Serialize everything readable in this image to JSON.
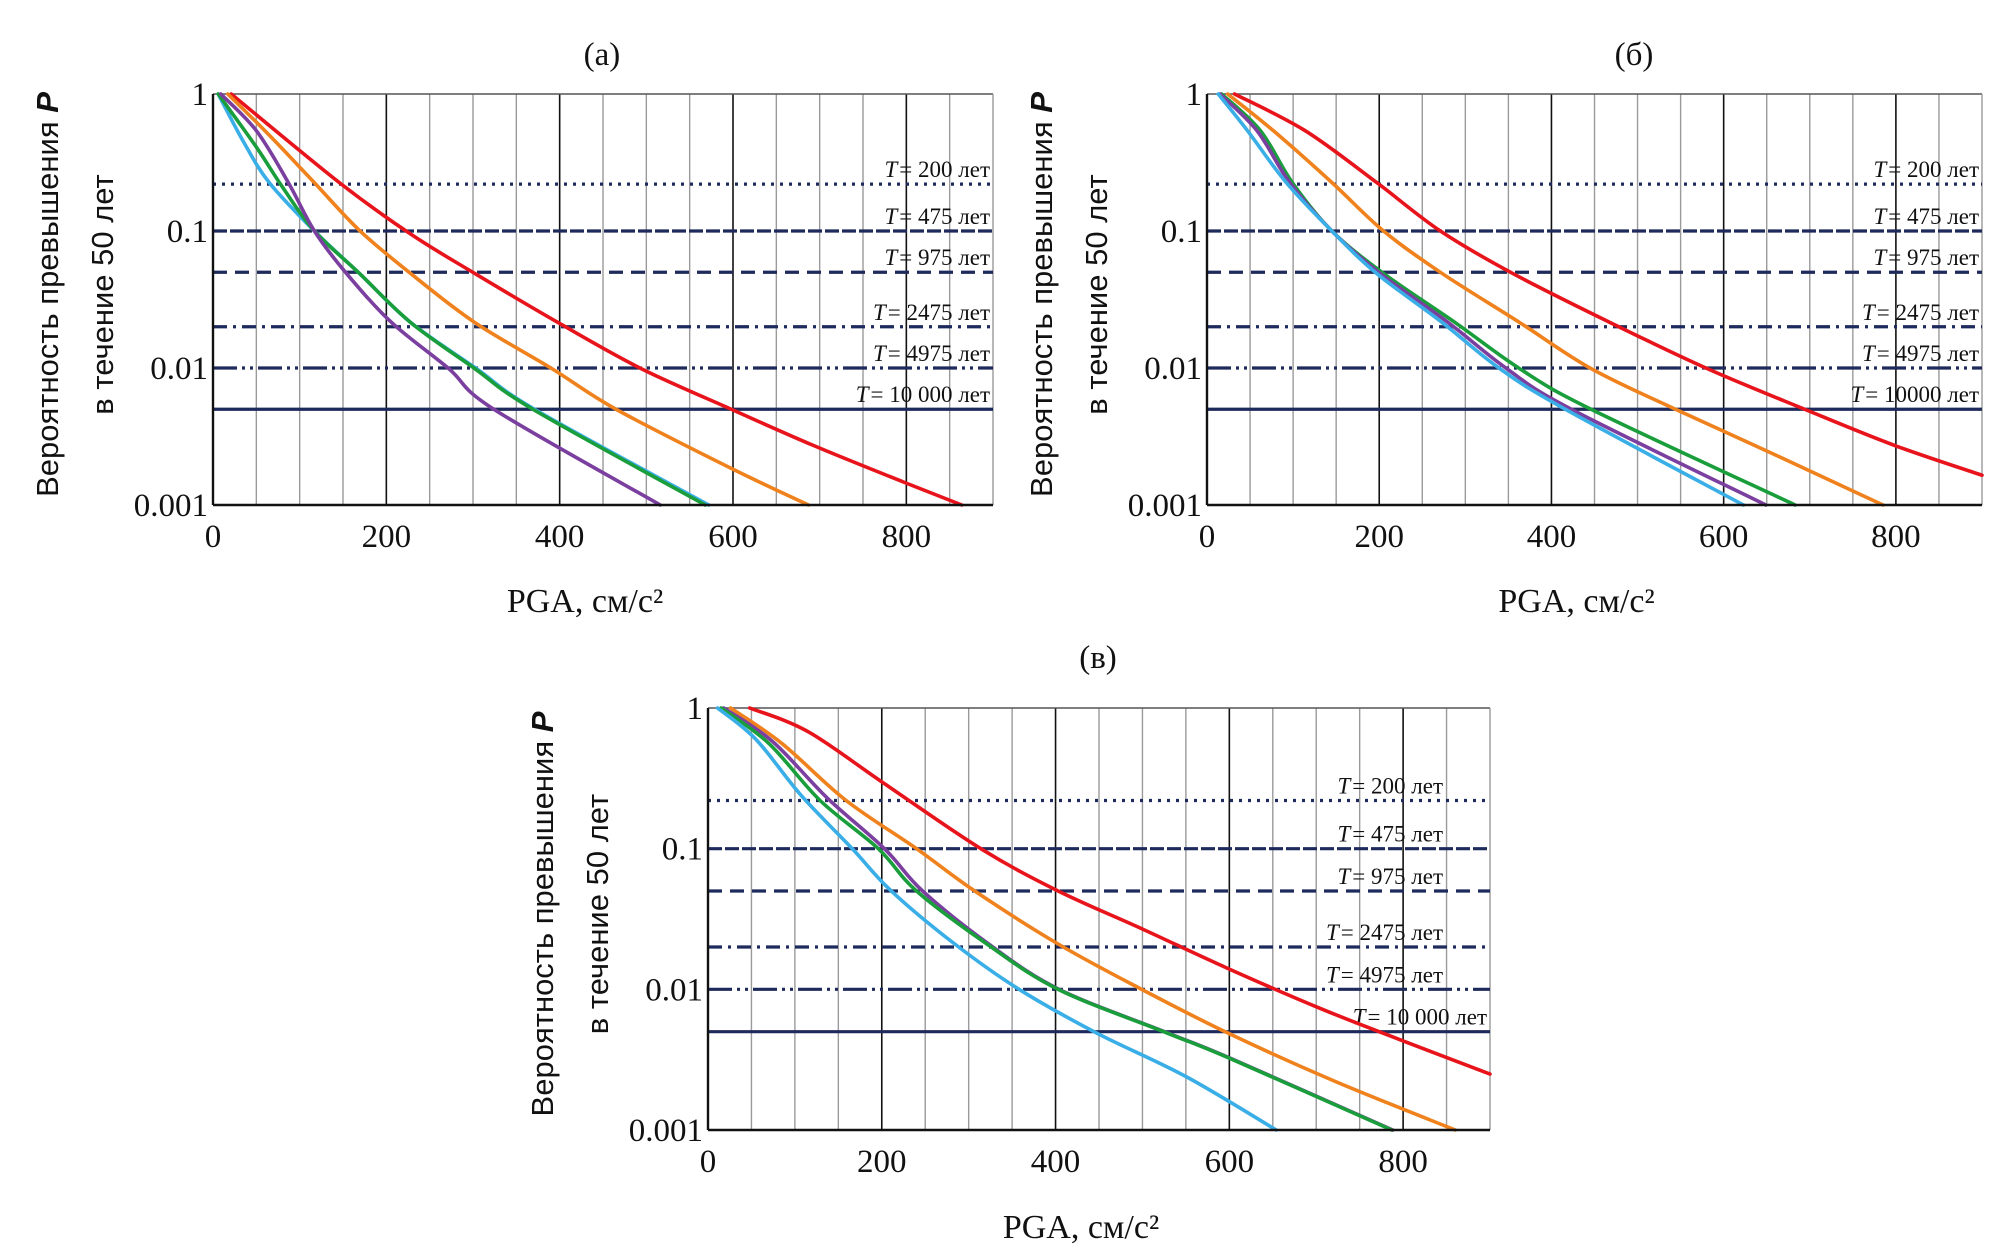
{
  "reference_color": "#1f2a5c",
  "chart_data": [
    {
      "type": "line",
      "title": "(а)",
      "xlabel": "PGA, см/с²",
      "ylabel_line1": "Вероятность превышения ",
      "ylabel_symbol": "P",
      "ylabel_line2": "в течение  50 лет",
      "xlim": [
        0,
        900
      ],
      "ylim": [
        0.001,
        1
      ],
      "yscale": "log",
      "xticks": [
        "0",
        "200",
        "400",
        "600",
        "800"
      ],
      "yticks": [
        "1",
        "0.1",
        "0.01",
        "0.001"
      ],
      "grid": "vertical every 50, major every 200",
      "reference_lines": [
        {
          "symbol": "T",
          "text": "= 200 лет",
          "p": 0.22,
          "style": "dotted"
        },
        {
          "symbol": "T",
          "text": "= 475 лет",
          "p": 0.1,
          "style": "dense-dash"
        },
        {
          "symbol": "T",
          "text": "= 975 лет",
          "p": 0.05,
          "style": "dashed"
        },
        {
          "symbol": "T",
          "text": "= 2475 лет",
          "p": 0.02,
          "style": "dash-dot"
        },
        {
          "symbol": "T",
          "text": "= 4975 лет",
          "p": 0.01,
          "style": "dash-dot-dot"
        },
        {
          "symbol": "T",
          "text": "= 10 000 лет",
          "p": 0.005,
          "style": "solid"
        }
      ],
      "series": [
        {
          "color": "#e8141c",
          "points": [
            [
              21,
              1
            ],
            [
              146,
              0.225
            ],
            [
              228,
              0.095
            ],
            [
              302,
              0.049
            ],
            [
              398,
              0.0215
            ],
            [
              494,
              0.0099
            ],
            [
              598,
              0.005
            ],
            [
              694,
              0.0027
            ],
            [
              798,
              0.00146
            ],
            [
              864,
              0.001
            ]
          ]
        },
        {
          "color": "#f0821e",
          "points": [
            [
              17,
              1
            ],
            [
              65,
              0.5
            ],
            [
              117,
              0.225
            ],
            [
              169,
              0.101
            ],
            [
              228,
              0.049
            ],
            [
              302,
              0.0215
            ],
            [
              391,
              0.0099
            ],
            [
              465,
              0.005
            ],
            [
              598,
              0.00185
            ],
            [
              687,
              0.001
            ]
          ]
        },
        {
          "color": "#3aaee6",
          "points": [
            [
              6,
              1
            ],
            [
              35,
              0.45
            ],
            [
              65,
              0.225
            ],
            [
              117,
              0.1
            ],
            [
              169,
              0.049
            ],
            [
              228,
              0.0215
            ],
            [
              304,
              0.0099
            ],
            [
              371,
              0.005
            ],
            [
              572,
              0.001
            ]
          ]
        },
        {
          "color": "#1a9e3c",
          "points": [
            [
              6,
              1
            ],
            [
              50,
              0.41
            ],
            [
              80,
              0.21
            ],
            [
              117,
              0.1
            ],
            [
              169,
              0.049
            ],
            [
              228,
              0.0215
            ],
            [
              302,
              0.0099
            ],
            [
              369,
              0.005
            ],
            [
              568,
              0.001
            ]
          ]
        },
        {
          "color": "#7b3fa0",
          "points": [
            [
              9,
              1
            ],
            [
              50,
              0.54
            ],
            [
              87,
              0.225
            ],
            [
              117,
              0.1
            ],
            [
              154,
              0.049
            ],
            [
              206,
              0.0215
            ],
            [
              272,
              0.0099
            ],
            [
              324,
              0.005
            ],
            [
              516,
              0.001
            ]
          ]
        }
      ]
    },
    {
      "type": "line",
      "title": "(б)",
      "xlabel": "PGA, см/с²",
      "ylabel_line1": "Вероятность превышения ",
      "ylabel_symbol": "P",
      "ylabel_line2": "в течение  50 лет",
      "xlim": [
        0,
        900
      ],
      "ylim": [
        0.001,
        1
      ],
      "yscale": "log",
      "xticks": [
        "0",
        "200",
        "400",
        "600",
        "800"
      ],
      "yticks": [
        "1",
        "0.1",
        "0.01",
        "0.001"
      ],
      "grid": "vertical every 50, major every 200",
      "reference_lines": [
        {
          "symbol": "T",
          "text": "= 200 лет",
          "p": 0.22,
          "style": "dotted"
        },
        {
          "symbol": "T",
          "text": "= 475 лет",
          "p": 0.1,
          "style": "dense-dash"
        },
        {
          "symbol": "T",
          "text": "= 975 лет",
          "p": 0.05,
          "style": "dashed"
        },
        {
          "symbol": "T",
          "text": "= 2475 лет",
          "p": 0.02,
          "style": "dash-dot"
        },
        {
          "symbol": "T",
          "text": "= 4975 лет",
          "p": 0.01,
          "style": "dash-dot-dot"
        },
        {
          "symbol": "T",
          "text": "= 10000 лет",
          "p": 0.005,
          "style": "solid"
        }
      ],
      "series": [
        {
          "color": "#e8141c",
          "points": [
            [
              32,
              1
            ],
            [
              114,
              0.54
            ],
            [
              197,
              0.226
            ],
            [
              271,
              0.1
            ],
            [
              355,
              0.049
            ],
            [
              468,
              0.0215
            ],
            [
              581,
              0.0099
            ],
            [
              694,
              0.005
            ],
            [
              800,
              0.0027
            ],
            [
              900,
              0.00165
            ]
          ]
        },
        {
          "color": "#f0821e",
          "points": [
            [
              24,
              1
            ],
            [
              77,
              0.54
            ],
            [
              145,
              0.226
            ],
            [
              205,
              0.1
            ],
            [
              273,
              0.049
            ],
            [
              363,
              0.0215
            ],
            [
              446,
              0.0099
            ],
            [
              544,
              0.005
            ],
            [
              664,
              0.00226
            ],
            [
              785,
              0.001
            ]
          ]
        },
        {
          "color": "#1a9e3c",
          "points": [
            [
              17,
              1
            ],
            [
              62,
              0.54
            ],
            [
              99,
              0.226
            ],
            [
              145,
              0.1
            ],
            [
              205,
              0.049
            ],
            [
              288,
              0.0215
            ],
            [
              363,
              0.0099
            ],
            [
              446,
              0.005
            ],
            [
              683,
              0.001
            ]
          ]
        },
        {
          "color": "#7b3fa0",
          "points": [
            [
              15,
              1
            ],
            [
              58,
              0.54
            ],
            [
              96,
              0.226
            ],
            [
              145,
              0.1
            ],
            [
              201,
              0.049
            ],
            [
              280,
              0.0215
            ],
            [
              348,
              0.0099
            ],
            [
              423,
              0.005
            ],
            [
              649,
              0.001
            ]
          ]
        },
        {
          "color": "#3aaee6",
          "points": [
            [
              13,
              1
            ],
            [
              47,
              0.54
            ],
            [
              92,
              0.226
            ],
            [
              145,
              0.1
            ],
            [
              197,
              0.049
            ],
            [
              273,
              0.0215
            ],
            [
              340,
              0.0099
            ],
            [
              416,
              0.005
            ],
            [
              623,
              0.001
            ]
          ]
        }
      ]
    },
    {
      "type": "line",
      "title": "(в)",
      "xlabel": "PGA, см/с²",
      "ylabel_line1": "Вероятность превышения ",
      "ylabel_symbol": "P",
      "ylabel_line2": "в течение  50 лет",
      "xlim": [
        0,
        900
      ],
      "ylim": [
        0.001,
        1
      ],
      "yscale": "log",
      "xticks": [
        "0",
        "200",
        "400",
        "600",
        "800"
      ],
      "yticks": [
        "1",
        "0.1",
        "0.01",
        "0.001"
      ],
      "grid": "vertical every 50, major every 200",
      "reference_lines": [
        {
          "symbol": "T",
          "text": "= 200 лет",
          "p": 0.22,
          "style": "dotted"
        },
        {
          "symbol": "T",
          "text": "= 475 лет",
          "p": 0.1,
          "style": "dense-dash"
        },
        {
          "symbol": "T",
          "text": "= 975 лет",
          "p": 0.05,
          "style": "dashed"
        },
        {
          "symbol": "T",
          "text": "= 2475 лет",
          "p": 0.02,
          "style": "dash-dot"
        },
        {
          "symbol": "T",
          "text": "= 4975 лет",
          "p": 0.01,
          "style": "dash-dot-dot"
        },
        {
          "symbol": "T",
          "text": "= 10 000 лет",
          "p": 0.005,
          "style": "solid"
        }
      ],
      "series": [
        {
          "color": "#e8141c",
          "points": [
            [
              48,
              1
            ],
            [
              115,
              0.68
            ],
            [
              203,
              0.29
            ],
            [
              314,
              0.1
            ],
            [
              403,
              0.05
            ],
            [
              499,
              0.027
            ],
            [
              598,
              0.0141
            ],
            [
              705,
              0.0073
            ],
            [
              800,
              0.0043
            ],
            [
              900,
              0.0025
            ]
          ]
        },
        {
          "color": "#f0821e",
          "points": [
            [
              26,
              1
            ],
            [
              85,
              0.56
            ],
            [
              159,
              0.22
            ],
            [
              240,
              0.1
            ],
            [
              307,
              0.05
            ],
            [
              403,
              0.021
            ],
            [
              499,
              0.01
            ],
            [
              598,
              0.0049
            ],
            [
              720,
              0.00224
            ],
            [
              860,
              0.001
            ]
          ]
        },
        {
          "color": "#7b3fa0",
          "points": [
            [
              18,
              1
            ],
            [
              74,
              0.58
            ],
            [
              137,
              0.23
            ],
            [
              203,
              0.1
            ],
            [
              247,
              0.05
            ],
            [
              323,
              0.021
            ],
            [
              404,
              0.01
            ],
            [
              529,
              0.0049
            ],
            [
              603,
              0.0032
            ],
            [
              788,
              0.001
            ]
          ]
        },
        {
          "color": "#1a9e3c",
          "points": [
            [
              15,
              1
            ],
            [
              70,
              0.56
            ],
            [
              129,
              0.22
            ],
            [
              196,
              0.1
            ],
            [
              240,
              0.05
            ],
            [
              321,
              0.021
            ],
            [
              403,
              0.01
            ],
            [
              528,
              0.0049
            ],
            [
              602,
              0.0032
            ],
            [
              787,
              0.001
            ]
          ]
        },
        {
          "color": "#3aaee6",
          "points": [
            [
              11,
              1
            ],
            [
              55,
              0.6
            ],
            [
              107,
              0.24
            ],
            [
              166,
              0.1
            ],
            [
              211,
              0.05
            ],
            [
              284,
              0.021
            ],
            [
              358,
              0.01
            ],
            [
              447,
              0.0049
            ],
            [
              550,
              0.0024
            ],
            [
              654,
              0.001
            ]
          ]
        }
      ]
    }
  ]
}
